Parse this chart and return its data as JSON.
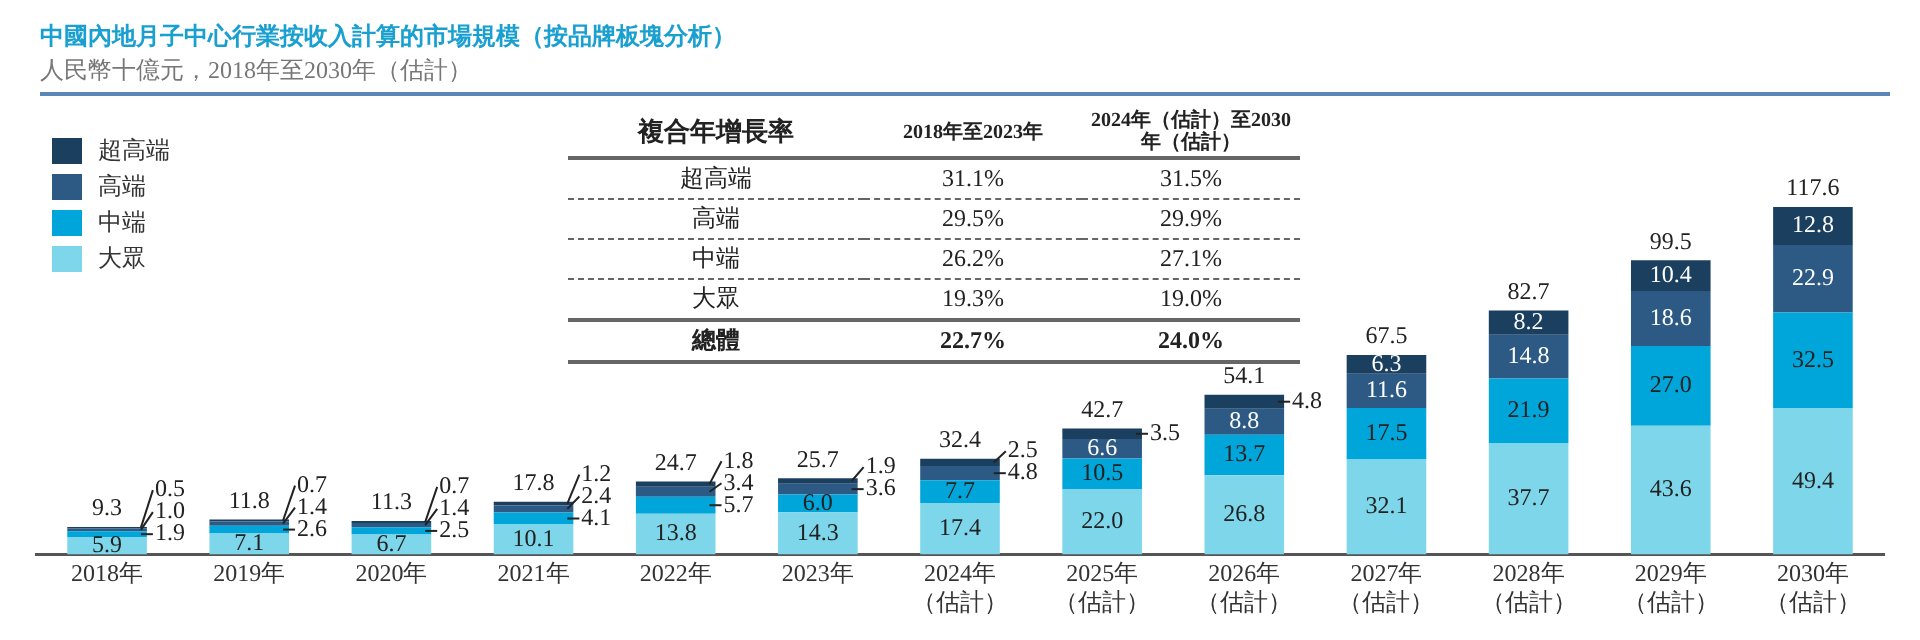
{
  "chart_data": [
    {
      "type": "bar",
      "title": "中國內地月子中心行業按收入計算的市場規模（按品牌板塊分析）",
      "subtitle": "人民幣十億元，2018年至2030年（估計）",
      "categories": [
        "2018年",
        "2019年",
        "2020年",
        "2021年",
        "2022年",
        "2023年",
        "2024年（估計）",
        "2025年（估計）",
        "2026年（估計）",
        "2027年（估計）",
        "2028年（估計）",
        "2029年（估計）",
        "2030年（估計）"
      ],
      "stacked": true,
      "legend": "top left",
      "grid": false,
      "series": [
        {
          "name": "大眾",
          "color": "#7dd6ea",
          "values": [
            5.9,
            7.1,
            6.7,
            10.1,
            13.8,
            14.3,
            17.4,
            22.0,
            26.8,
            32.1,
            37.7,
            43.6,
            49.4
          ],
          "value_labels": [
            "5.9",
            "7.1",
            "6.7",
            "10.1",
            "13.8",
            "14.3",
            "17.4",
            "22.0",
            "26.8",
            "32.1",
            "37.7",
            "43.6",
            "49.4"
          ]
        },
        {
          "name": "中端",
          "color": "#00a5d9",
          "values": [
            1.9,
            2.6,
            2.5,
            4.1,
            5.7,
            6.0,
            7.7,
            10.5,
            13.7,
            17.5,
            21.9,
            27.0,
            32.5
          ],
          "value_labels": [
            "1.9",
            "2.6",
            "2.5",
            "4.1",
            "5.7",
            "6.0",
            "7.7",
            "10.5",
            "13.7",
            "17.5",
            "21.9",
            "27.0",
            "32.5"
          ]
        },
        {
          "name": "高端",
          "color": "#2d5a84",
          "values": [
            1.0,
            1.4,
            1.4,
            2.4,
            3.4,
            3.6,
            4.8,
            6.6,
            8.8,
            11.6,
            14.8,
            18.6,
            22.9
          ],
          "value_labels": [
            "1.0",
            "1.4",
            "1.4",
            "2.4",
            "3.4",
            "3.6",
            "4.8",
            "6.6",
            "8.8",
            "11.6",
            "14.8",
            "18.6",
            "22.9"
          ]
        },
        {
          "name": "超高端",
          "color": "#1b3f5e",
          "values": [
            0.5,
            0.7,
            0.7,
            1.2,
            1.8,
            1.9,
            2.5,
            3.5,
            4.8,
            6.3,
            8.2,
            10.4,
            12.8
          ],
          "value_labels": [
            "0.5",
            "0.7",
            "0.7",
            "1.2",
            "1.8",
            "1.9",
            "2.5",
            "3.5",
            "4.8",
            "6.3",
            "8.2",
            "10.4",
            "12.8"
          ]
        }
      ],
      "totals": [
        "9.3",
        "11.8",
        "11.3",
        "17.8",
        "24.7",
        "25.7",
        "32.4",
        "42.7",
        "54.1",
        "67.5",
        "82.7",
        "99.5",
        "117.6"
      ]
    },
    {
      "type": "other",
      "title": "複合年增長率",
      "categories": [
        "2018年至2023年",
        "2024年（估計）至2030年（估計）"
      ],
      "y_categories": [
        "超高端",
        "高端",
        "中端",
        "大眾",
        "總體"
      ],
      "cell_labels": [
        [
          "31.1%",
          "31.5%"
        ],
        [
          "29.5%",
          "29.9%"
        ],
        [
          "26.2%",
          "27.1%"
        ],
        [
          "19.3%",
          "19.0%"
        ],
        [
          "22.7%",
          "24.0%"
        ]
      ]
    }
  ]
}
